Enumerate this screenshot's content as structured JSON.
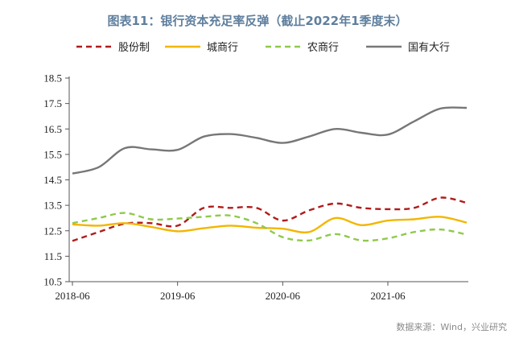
{
  "title": "图表11：银行资本充足率反弹（截止2022年1季度末）",
  "source": "数据来源：Wind，兴业研究",
  "colors": {
    "title": "#5f7f9e",
    "axis": "#555555"
  },
  "chart_data": {
    "type": "line",
    "title": "图表11：银行资本充足率反弹（截止2022年1季度末）",
    "x": [
      "2018-06",
      "2018-09",
      "2018-12",
      "2019-03",
      "2019-06",
      "2019-09",
      "2019-12",
      "2020-03",
      "2020-06",
      "2020-09",
      "2020-12",
      "2021-03",
      "2021-06",
      "2021-09",
      "2021-12",
      "2022-03"
    ],
    "xticks": [
      "2018-06",
      "2019-06",
      "2020-06",
      "2021-06"
    ],
    "ylim": [
      10.5,
      18.5
    ],
    "yticks": [
      "10.5",
      "11.5",
      "12.5",
      "13.5",
      "14.5",
      "15.5",
      "16.5",
      "17.5",
      "18.5"
    ],
    "legend_position": "top",
    "grid": false,
    "series": [
      {
        "name": "股份制",
        "color": "#b01c1c",
        "dash": "dash",
        "values": [
          12.1,
          12.45,
          12.78,
          12.8,
          12.7,
          13.4,
          13.4,
          13.4,
          12.9,
          13.3,
          13.57,
          13.4,
          13.35,
          13.4,
          13.8,
          13.6
        ]
      },
      {
        "name": "城商行",
        "color": "#f2b600",
        "dash": "solid",
        "values": [
          12.75,
          12.7,
          12.8,
          12.65,
          12.48,
          12.6,
          12.7,
          12.62,
          12.58,
          12.45,
          13.0,
          12.72,
          12.9,
          12.95,
          13.05,
          12.82
        ]
      },
      {
        "name": "农商行",
        "color": "#8fc94a",
        "dash": "dash",
        "values": [
          12.8,
          13.0,
          13.2,
          12.95,
          12.98,
          13.05,
          13.1,
          12.8,
          12.25,
          12.12,
          12.37,
          12.12,
          12.2,
          12.45,
          12.55,
          12.35
        ]
      },
      {
        "name": "国有大行",
        "color": "#777777",
        "dash": "solid",
        "values": [
          14.75,
          15.0,
          15.75,
          15.7,
          15.68,
          16.2,
          16.3,
          16.15,
          15.95,
          16.2,
          16.5,
          16.35,
          16.28,
          16.8,
          17.3,
          17.33
        ]
      }
    ]
  }
}
